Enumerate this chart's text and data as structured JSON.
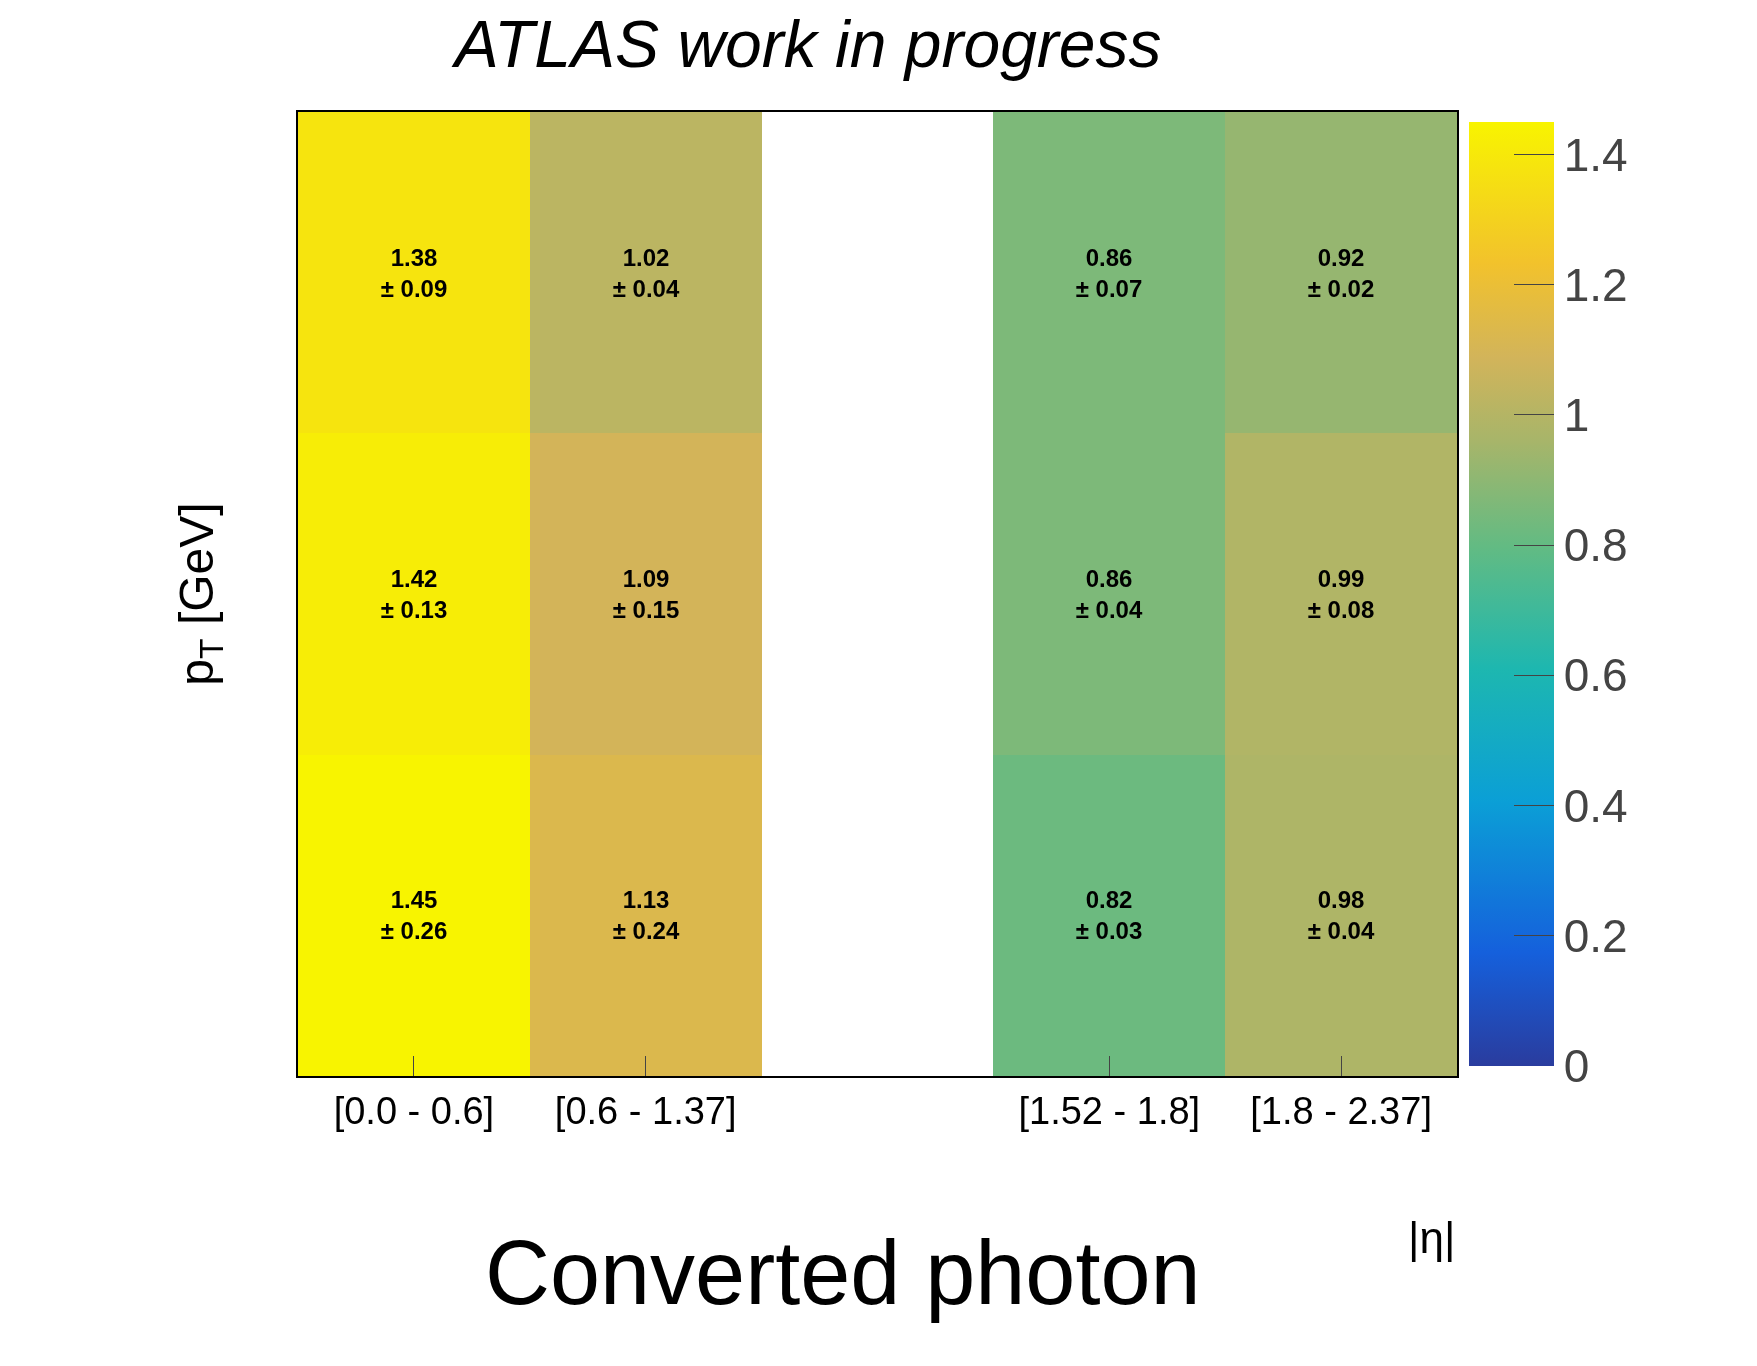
{
  "chart_data": {
    "type": "heatmap",
    "title": "ATLAS work in progress",
    "xlabel": "|η|",
    "ylabel": "p$_{T}$ [GeV]",
    "categories": [
      "[0.0 - 0.6]",
      "[0.6 - 1.37]",
      null,
      "[1.52 - 1.8]",
      "[1.8 - 2.37]"
    ],
    "y_categories": [
      null,
      null,
      null
    ],
    "cells": [
      [
        1.38,
        1.02,
        null,
        0.86,
        0.92
      ],
      [
        1.42,
        1.09,
        null,
        0.86,
        0.99
      ],
      [
        1.45,
        1.13,
        null,
        0.82,
        0.98
      ]
    ],
    "cell_labels": [
      [
        "1.38\n± 0.09",
        "1.02\n± 0.04",
        null,
        "0.86\n± 0.07",
        "0.92\n± 0.02"
      ],
      [
        "1.42\n± 0.13",
        "1.09\n± 0.15",
        null,
        "0.86\n± 0.04",
        "0.99\n± 0.08"
      ],
      [
        "1.45\n± 0.26",
        "1.13\n± 0.24",
        null,
        "0.82\n± 0.03",
        "0.98\n± 0.04"
      ]
    ],
    "clim": [
      0,
      1.45
    ],
    "cticks": [
      0,
      0.2,
      0.4,
      0.6,
      0.8,
      1,
      1.2,
      1.4
    ],
    "annotations": [
      "Converted photon"
    ]
  }
}
